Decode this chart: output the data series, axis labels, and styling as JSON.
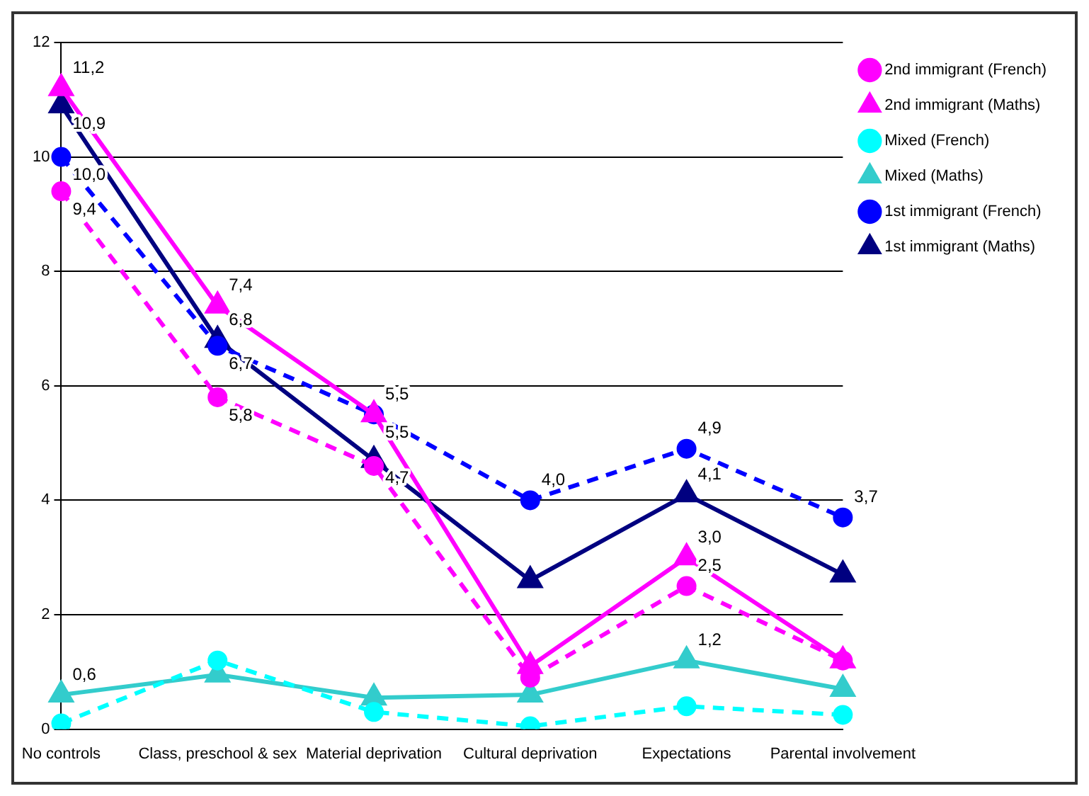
{
  "chart_data": {
    "type": "line",
    "categories": [
      "No controls",
      "Class, preschool & sex",
      "Material deprivation",
      "Cultural deprivation",
      "Expectations",
      "Parental involvement"
    ],
    "ylim": [
      0,
      12
    ],
    "yticks": [
      0,
      2,
      4,
      6,
      8,
      10,
      12
    ],
    "grid": "y",
    "legend": "right",
    "series": [
      {
        "name": "1st immigrant (Maths)",
        "color": "#000080",
        "marker": "triangle",
        "line_style": "solid",
        "values": [
          10.9,
          6.8,
          4.7,
          2.6,
          4.1,
          2.7
        ],
        "value_labels": [
          "10,9",
          "6,8",
          "4,7",
          null,
          "4,1",
          null
        ]
      },
      {
        "name": "1st immigrant (French)",
        "color": "#0000ff",
        "marker": "circle",
        "line_style": "dashed",
        "values": [
          10.0,
          6.7,
          5.5,
          4.0,
          4.9,
          3.7
        ],
        "value_labels": [
          "10,0",
          "6,7",
          "5,5",
          "4,0",
          "4,9",
          "3,7"
        ]
      },
      {
        "name": "Mixed (Maths)",
        "color": "#33cccc",
        "marker": "triangle",
        "line_style": "solid",
        "values": [
          0.6,
          0.95,
          0.55,
          0.6,
          1.2,
          0.7
        ],
        "value_labels": [
          "0,6",
          null,
          null,
          null,
          "1,2",
          null
        ]
      },
      {
        "name": "Mixed (French)",
        "color": "#00ffff",
        "marker": "circle",
        "line_style": "dashed",
        "values": [
          0.1,
          1.2,
          0.3,
          0.05,
          0.4,
          0.25
        ]
      },
      {
        "name": "2nd immigrant (Maths)",
        "color": "#ff00ff",
        "marker": "triangle",
        "line_style": "solid",
        "values": [
          11.2,
          7.4,
          5.5,
          1.1,
          3.0,
          1.2
        ],
        "value_labels": [
          "11,2",
          "7,4",
          "5,5",
          null,
          "3,0",
          null
        ]
      },
      {
        "name": "2nd immigrant (French)",
        "color": "#ff00ff",
        "marker": "circle",
        "line_style": "dashed",
        "values": [
          9.4,
          5.8,
          4.6,
          0.9,
          2.5,
          1.2
        ],
        "value_labels": [
          "9,4",
          "5,8",
          null,
          null,
          "2,5",
          null
        ]
      }
    ]
  }
}
